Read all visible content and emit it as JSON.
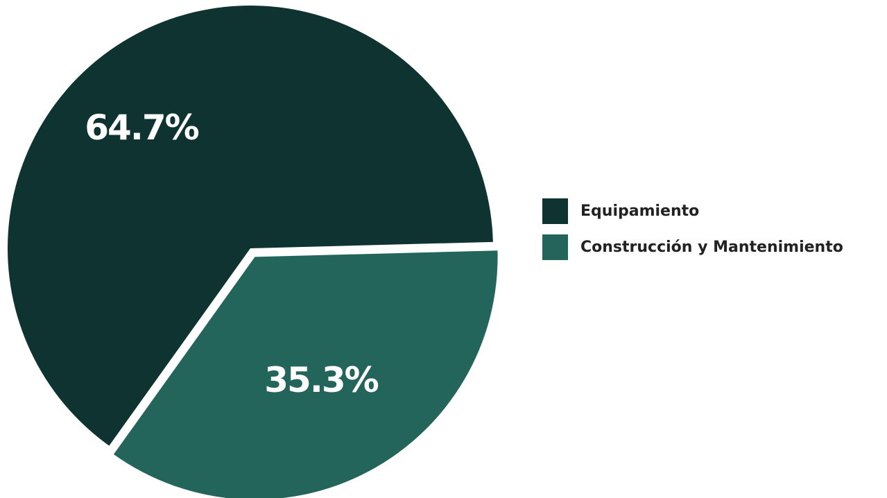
{
  "chart_data": {
    "type": "pie",
    "title": "",
    "slices": [
      {
        "name": "Equipamiento",
        "value": 64.7,
        "label": "64.7%",
        "color": "#0f3330"
      },
      {
        "name": "Construcción y Mantenimiento",
        "value": 35.3,
        "label": "35.3%",
        "color": "#23645b"
      }
    ],
    "legend_position": "right",
    "exploded_slice": "Construcción y Mantenimiento"
  }
}
